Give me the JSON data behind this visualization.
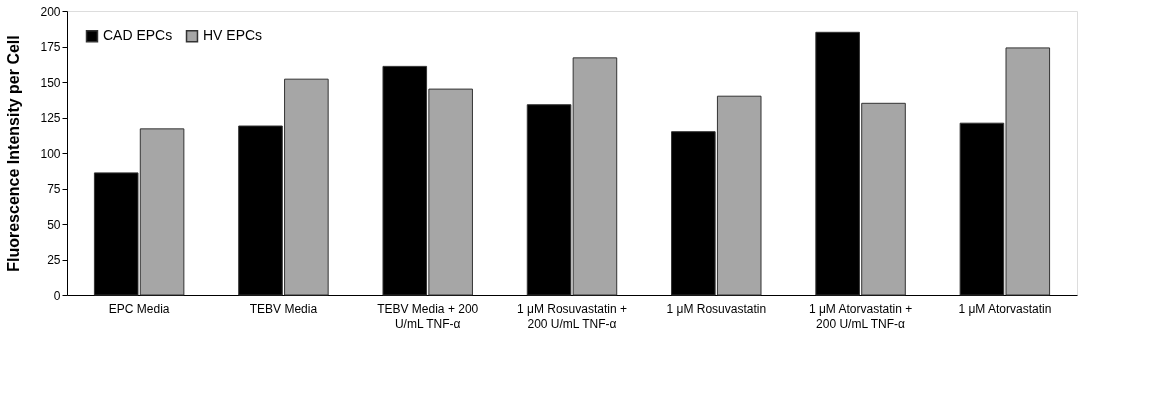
{
  "chart_data": {
    "type": "bar",
    "ylabel": "Fluorescence Intensity per Cell",
    "categories": [
      "EPC Media",
      "TEBV Media",
      "TEBV Media + 200\nU/mL TNF-α",
      "1 μM Rosuvastatin +\n200 U/mL TNF-α",
      "1 μM Rosuvastatin",
      "1 μM Atorvastatin +\n200 U/mL TNF-α",
      "1 μM Atorvastatin"
    ],
    "series": [
      {
        "name": "CAD EPCs",
        "color": "#000000",
        "values": [
          86,
          119,
          161,
          134,
          115,
          185,
          121
        ]
      },
      {
        "name": "HV EPCs",
        "color": "#a6a6a6",
        "values": [
          117,
          152,
          145,
          167,
          140,
          135,
          174
        ]
      }
    ],
    "ylim": [
      0,
      200
    ],
    "yticks": [
      0,
      25,
      50,
      75,
      100,
      125,
      150,
      175,
      200
    ],
    "grid": false,
    "legend": "top left"
  }
}
